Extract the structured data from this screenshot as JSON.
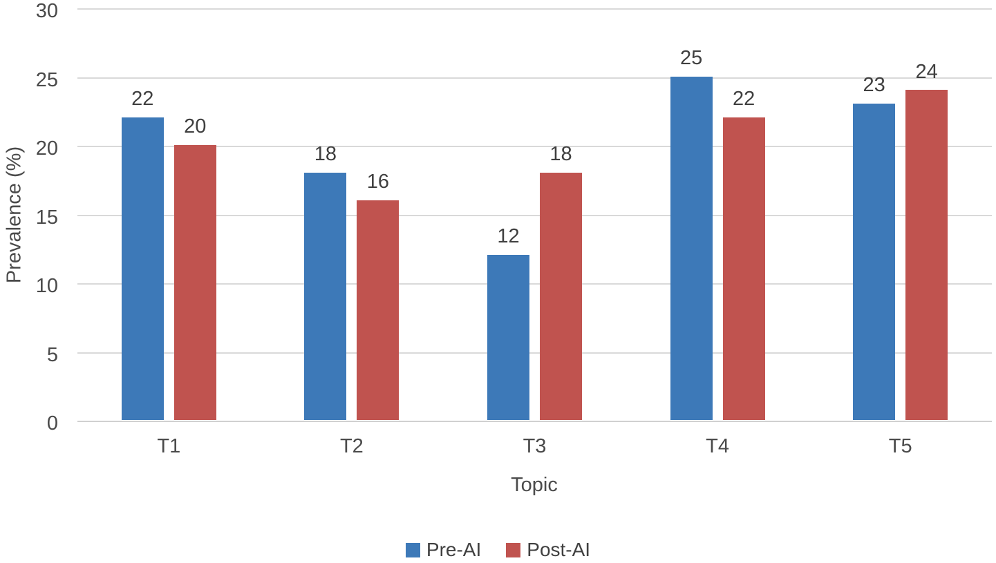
{
  "chart_data": {
    "type": "bar",
    "categories": [
      "T1",
      "T2",
      "T3",
      "T4",
      "T5"
    ],
    "series": [
      {
        "name": "Pre-AI",
        "color": "#3d79b8",
        "values": [
          22,
          18,
          12,
          25,
          23
        ]
      },
      {
        "name": "Post-AI",
        "color": "#c0534f",
        "values": [
          20,
          16,
          18,
          22,
          24
        ]
      }
    ],
    "title": "",
    "xlabel": "Topic",
    "ylabel": "Prevalence (%)",
    "ylim": [
      0,
      30
    ],
    "yticks": [
      0,
      5,
      10,
      15,
      20,
      25,
      30
    ],
    "grid": true,
    "data_labels": true,
    "legend_position": "bottom",
    "colors": {
      "background": "#ffffff",
      "gridline": "#d9d9d9",
      "axis_line": "#d0d0d0",
      "tick_text": "#4a4a4a",
      "data_label_text": "#3f3f3f",
      "legend_text": "#404040"
    }
  }
}
